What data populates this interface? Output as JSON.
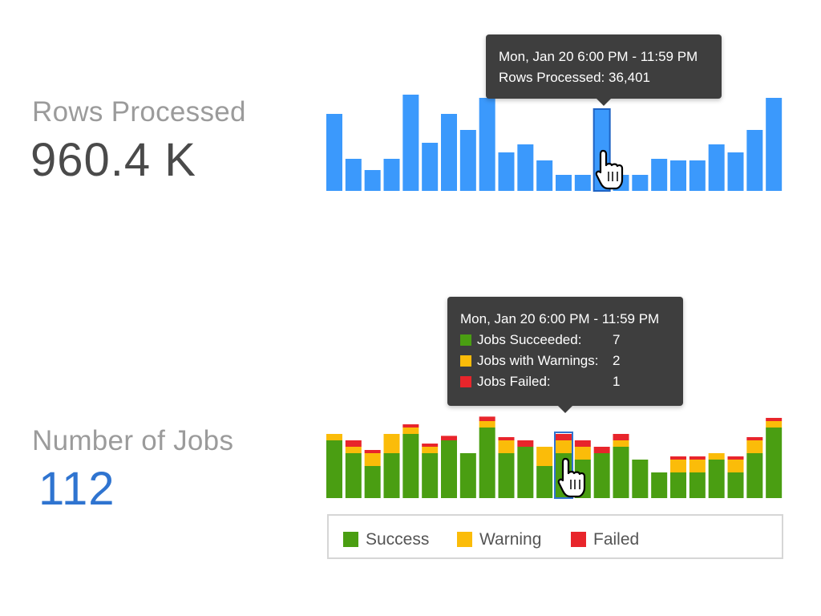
{
  "rows": {
    "label": "Rows Processed",
    "value": "960.4 K",
    "tooltip": {
      "title": "Mon, Jan 20 6:00 PM - 11:59 PM",
      "row": "Rows Processed: 36,401"
    }
  },
  "jobs": {
    "label": "Number of Jobs",
    "value": "112",
    "tooltip": {
      "title": "Mon, Jan 20 6:00 PM - 11:59 PM",
      "items": [
        {
          "label": "Jobs Succeeded:",
          "value": "7",
          "color": "#4a9e12"
        },
        {
          "label": "Jobs with Warnings:",
          "value": "2",
          "color": "#fbbc09"
        },
        {
          "label": "Jobs Failed:",
          "value": "1",
          "color": "#e8252b"
        }
      ]
    }
  },
  "legend": [
    {
      "label": "Success",
      "color": "#4a9e12"
    },
    {
      "label": "Warning",
      "color": "#fbbc09"
    },
    {
      "label": "Failed",
      "color": "#e8252b"
    }
  ],
  "chart_data": [
    {
      "type": "bar",
      "title": "Rows Processed",
      "series": [
        {
          "name": "Rows Processed",
          "values": [
            48,
            20,
            13,
            20,
            60,
            30,
            48,
            38,
            58,
            24,
            29,
            19,
            10,
            10,
            51,
            10,
            10,
            20,
            19,
            19,
            29,
            24,
            38,
            58
          ],
          "color": "#3b99fc"
        }
      ],
      "highlight_index": 14
    },
    {
      "type": "bar",
      "stacked": true,
      "title": "Number of Jobs",
      "series": [
        {
          "name": "Success",
          "values": [
            9,
            7,
            5,
            7,
            10,
            7,
            9,
            7,
            11,
            7,
            8,
            5,
            7,
            6,
            7,
            8,
            6,
            4,
            4,
            4,
            6,
            4,
            7,
            11
          ],
          "color": "#4a9e12"
        },
        {
          "name": "Warning",
          "values": [
            1,
            1,
            2,
            3,
            1,
            1,
            0,
            0,
            1,
            2,
            0,
            3,
            2,
            2,
            0,
            1,
            0,
            0,
            2,
            2,
            1,
            2,
            2,
            1
          ],
          "color": "#fbbc09"
        },
        {
          "name": "Failed",
          "values": [
            0,
            1,
            0.5,
            0,
            0.5,
            0.5,
            0.7,
            0,
            0.7,
            0.5,
            1,
            0,
            1,
            1,
            1,
            1,
            0,
            0,
            0.5,
            0.5,
            0,
            0.5,
            0.5,
            0.5
          ],
          "color": "#e8252b"
        }
      ],
      "highlight_index": 12
    }
  ]
}
